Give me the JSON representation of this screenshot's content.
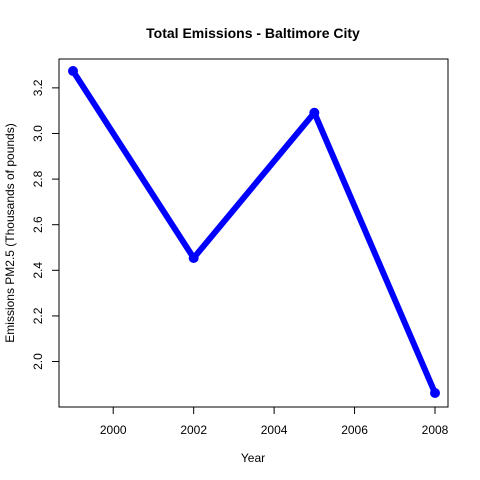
{
  "chart_data": {
    "type": "line",
    "title": "Total Emissions - Baltimore City",
    "xlabel": "Year",
    "ylabel": "Emissions PM2.5 (Thousands of pounds)",
    "x": [
      1999,
      2002,
      2005,
      2008
    ],
    "series": [
      {
        "values": [
          3.274,
          2.454,
          3.091,
          1.862
        ]
      }
    ],
    "xlim": [
      1999,
      2008
    ],
    "ylim": [
      1.862,
      3.274
    ],
    "xticks": [
      2000,
      2002,
      2004,
      2006,
      2008
    ],
    "yticks": [
      2.0,
      2.2,
      2.4,
      2.6,
      2.8,
      3.0,
      3.2
    ],
    "xtick_labels": [
      "2000",
      "2002",
      "2004",
      "2006",
      "2008"
    ],
    "ytick_labels": [
      "2.0",
      "2.2",
      "2.4",
      "2.6",
      "2.8",
      "3.0",
      "3.2"
    ],
    "grid": false,
    "line_color": "#0000ff",
    "marker": "filled-circle"
  }
}
